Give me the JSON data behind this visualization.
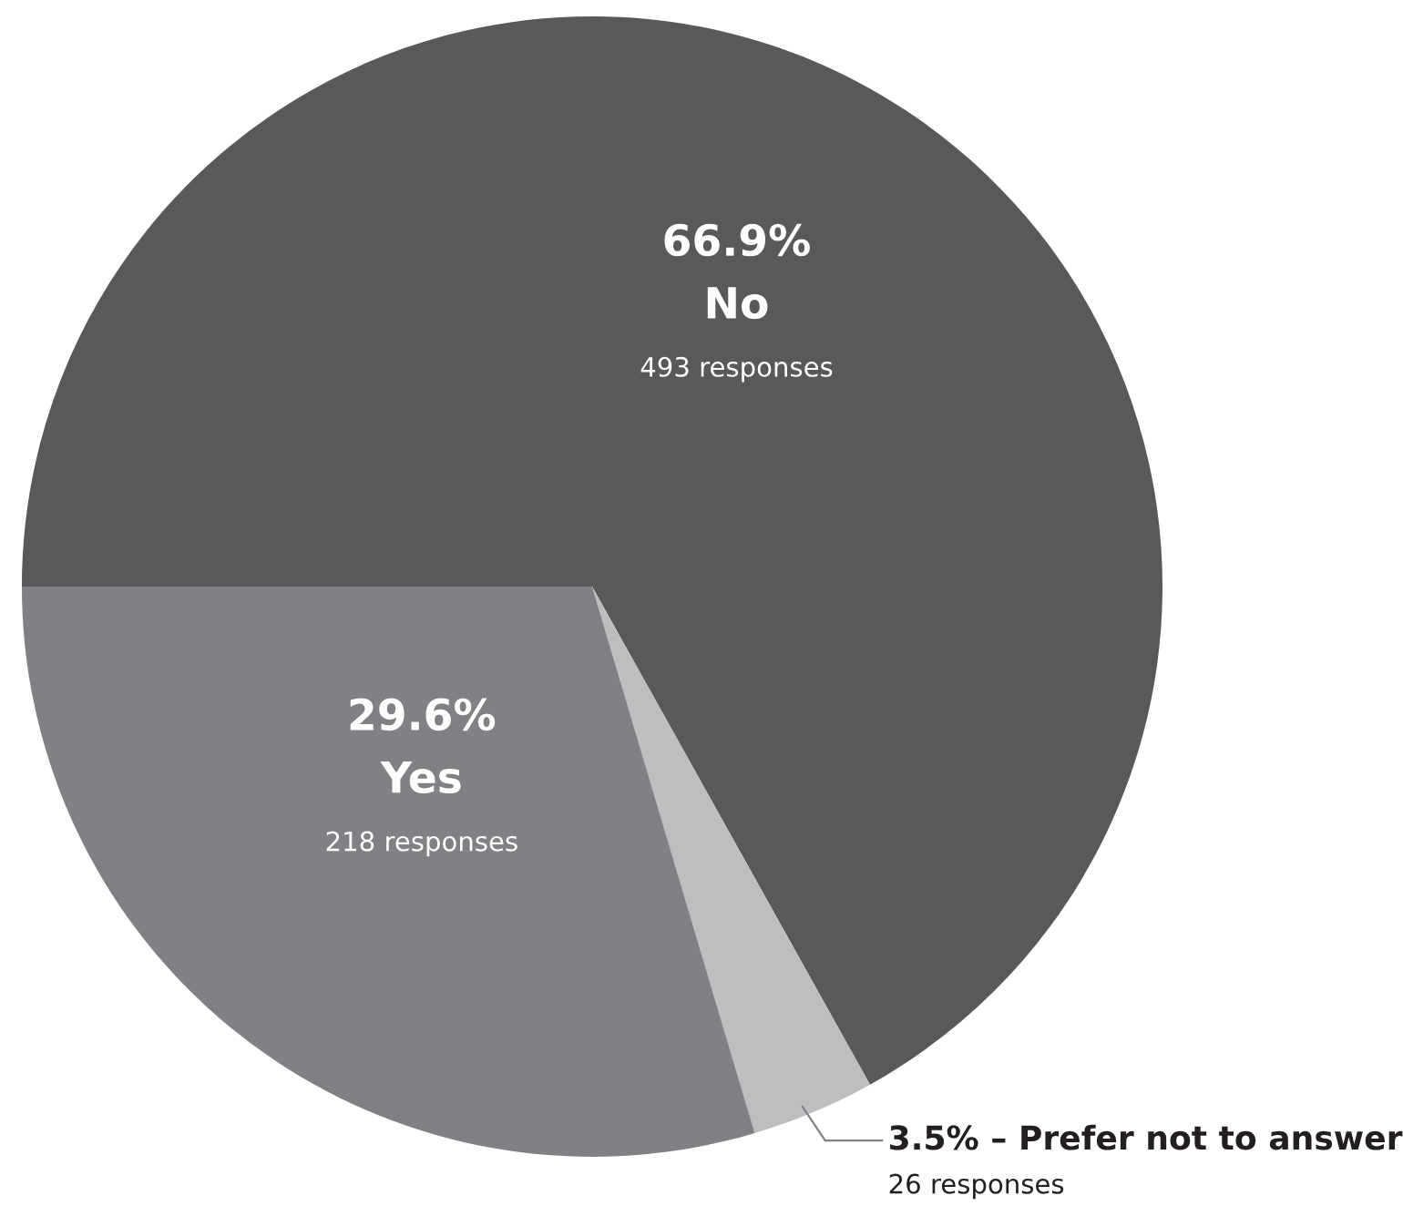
{
  "chart_data": {
    "type": "pie",
    "categories": [
      "No",
      "Prefer not to answer",
      "Yes"
    ],
    "values": [
      66.9,
      3.5,
      29.6
    ],
    "value_labels": [
      "66.9%",
      "3.5%",
      "29.6%"
    ],
    "colors": [
      "#58595b",
      "#bcbec0",
      "#808184"
    ],
    "annotations": [
      "493 responses",
      "26 responses",
      "218 responses"
    ],
    "legend": false
  }
}
